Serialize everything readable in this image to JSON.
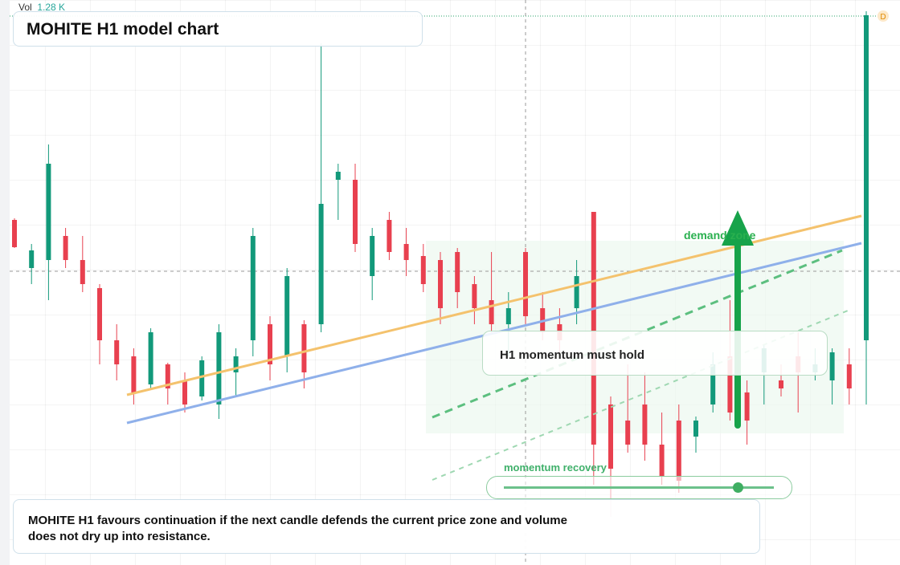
{
  "chart_data": {
    "type": "candlestick",
    "title": "MOHITE H1 model chart",
    "volume_label": "Vol",
    "volume_value": "1.28 K",
    "annotations": [
      "demand zone",
      "H1 momentum must hold",
      "momentum recovery"
    ],
    "note": "MOHITE H1 favours continuation if the next candle defends the current price zone and volume does not dry up into resistance.",
    "up_color": "#12997a",
    "down_color": "#e8404f",
    "ylim": [
      0,
      704
    ],
    "candles": [
      {
        "open": 430,
        "high": 432,
        "low": 395,
        "close": 396
      },
      {
        "open": 370,
        "high": 400,
        "low": 350,
        "close": 392
      },
      {
        "open": 380,
        "high": 524,
        "low": 330,
        "close": 500
      },
      {
        "open": 410,
        "high": 420,
        "low": 370,
        "close": 380
      },
      {
        "open": 380,
        "high": 410,
        "low": 340,
        "close": 350
      },
      {
        "open": 345,
        "high": 350,
        "low": 250,
        "close": 280
      },
      {
        "open": 280,
        "high": 300,
        "low": 230,
        "close": 250
      },
      {
        "open": 260,
        "high": 270,
        "low": 200,
        "close": 215
      },
      {
        "open": 225,
        "high": 295,
        "low": 220,
        "close": 290
      },
      {
        "open": 250,
        "high": 252,
        "low": 200,
        "close": 220
      },
      {
        "open": 230,
        "high": 240,
        "low": 190,
        "close": 200
      },
      {
        "open": 210,
        "high": 260,
        "low": 205,
        "close": 255
      },
      {
        "open": 200,
        "high": 300,
        "low": 182,
        "close": 290
      },
      {
        "open": 240,
        "high": 270,
        "low": 210,
        "close": 260
      },
      {
        "open": 280,
        "high": 420,
        "low": 260,
        "close": 410
      },
      {
        "open": 300,
        "high": 310,
        "low": 230,
        "close": 250
      },
      {
        "open": 260,
        "high": 370,
        "low": 240,
        "close": 360
      },
      {
        "open": 300,
        "high": 305,
        "low": 220,
        "close": 240
      },
      {
        "open": 300,
        "high": 650,
        "low": 290,
        "close": 450
      },
      {
        "open": 480,
        "high": 500,
        "low": 430,
        "close": 490
      },
      {
        "open": 480,
        "high": 500,
        "low": 390,
        "close": 400
      },
      {
        "open": 360,
        "high": 420,
        "low": 330,
        "close": 410
      },
      {
        "open": 430,
        "high": 440,
        "low": 380,
        "close": 390
      },
      {
        "open": 400,
        "high": 420,
        "low": 360,
        "close": 380
      },
      {
        "open": 385,
        "high": 400,
        "low": 340,
        "close": 350
      },
      {
        "open": 380,
        "high": 390,
        "low": 300,
        "close": 320
      },
      {
        "open": 390,
        "high": 395,
        "low": 320,
        "close": 340
      },
      {
        "open": 350,
        "high": 360,
        "low": 300,
        "close": 320
      },
      {
        "open": 330,
        "high": 390,
        "low": 290,
        "close": 300
      },
      {
        "open": 300,
        "high": 340,
        "low": 260,
        "close": 320
      },
      {
        "open": 390,
        "high": 395,
        "low": 300,
        "close": 310
      },
      {
        "open": 320,
        "high": 340,
        "low": 280,
        "close": 290
      },
      {
        "open": 300,
        "high": 320,
        "low": 260,
        "close": 280
      },
      {
        "open": 320,
        "high": 380,
        "low": 300,
        "close": 360
      },
      {
        "open": 440,
        "high": 440,
        "low": 100,
        "close": 150
      },
      {
        "open": 200,
        "high": 210,
        "low": 60,
        "close": 120
      },
      {
        "open": 180,
        "high": 250,
        "low": 140,
        "close": 150
      },
      {
        "open": 200,
        "high": 240,
        "low": 130,
        "close": 150
      },
      {
        "open": 150,
        "high": 190,
        "low": 100,
        "close": 110
      },
      {
        "open": 180,
        "high": 200,
        "low": 90,
        "close": 105
      },
      {
        "open": 160,
        "high": 185,
        "low": 140,
        "close": 180
      },
      {
        "open": 200,
        "high": 265,
        "low": 190,
        "close": 250
      },
      {
        "open": 260,
        "high": 330,
        "low": 180,
        "close": 190
      },
      {
        "open": 215,
        "high": 230,
        "low": 150,
        "close": 180
      },
      {
        "open": 240,
        "high": 275,
        "low": 200,
        "close": 270
      },
      {
        "open": 230,
        "high": 250,
        "low": 210,
        "close": 220
      },
      {
        "open": 260,
        "high": 290,
        "low": 190,
        "close": 240
      },
      {
        "open": 240,
        "high": 270,
        "low": 230,
        "close": 250
      },
      {
        "open": 230,
        "high": 270,
        "low": 200,
        "close": 265
      },
      {
        "open": 250,
        "high": 270,
        "low": 200,
        "close": 220
      },
      {
        "open": 280,
        "high": 690,
        "low": 200,
        "close": 685
      }
    ]
  }
}
